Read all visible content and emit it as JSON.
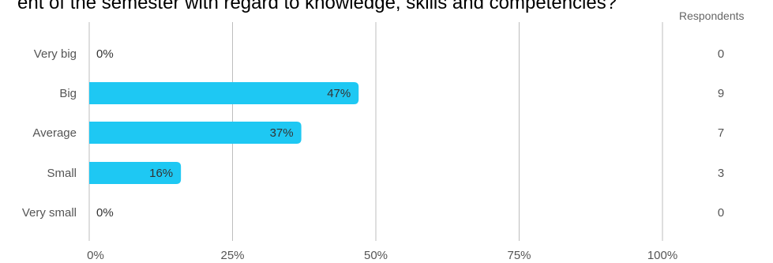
{
  "chart_data": {
    "type": "bar",
    "orientation": "horizontal",
    "title": "ent of the semester with regard to knowledge, skills and competencies?",
    "categories": [
      "Very big",
      "Big",
      "Average",
      "Small",
      "Very small"
    ],
    "values": [
      0,
      47,
      37,
      16,
      0
    ],
    "value_labels": [
      "0%",
      "47%",
      "37%",
      "16%",
      "0%"
    ],
    "x_ticks": [
      "0%",
      "25%",
      "50%",
      "75%",
      "100%"
    ],
    "xlim": [
      0,
      100
    ],
    "grid": true,
    "respondents_header": "Respondents",
    "respondents": [
      "0",
      "9",
      "7",
      "3",
      "0"
    ],
    "bar_color": "#1ec8f3",
    "grid_color": "#bdbdbd",
    "text_color": "#555555"
  }
}
